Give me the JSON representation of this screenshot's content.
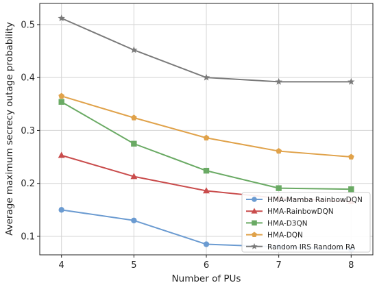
{
  "chart_data": {
    "type": "line",
    "xlabel": "Number of PUs",
    "ylabel": "Average maximum secrecy outage probability",
    "x": [
      4,
      5,
      6,
      7,
      8
    ],
    "xlim": [
      3.7,
      8.3
    ],
    "ylim": [
      0.065,
      0.54
    ],
    "xticks": [
      "4",
      "5",
      "6",
      "7",
      "8"
    ],
    "yticks": [
      0.1,
      0.2,
      0.3,
      0.4,
      0.5
    ],
    "ytick_labels": [
      "0.1",
      "0.2",
      "0.3",
      "0.4",
      "0.5"
    ],
    "grid": true,
    "legend_position": "bottom-right",
    "series": [
      {
        "name": "HMA-Mamba RainbowDQN",
        "color": "#6b9bd1",
        "marker": "circle",
        "values": [
          0.15,
          0.13,
          0.085,
          0.08,
          0.075
        ]
      },
      {
        "name": "HMA-RainbowDQN",
        "color": "#c94c4c",
        "marker": "triangle",
        "values": [
          0.253,
          0.213,
          0.186,
          0.172,
          0.166
        ]
      },
      {
        "name": "HMA-D3QN",
        "color": "#6aaa64",
        "marker": "square",
        "values": [
          0.354,
          0.275,
          0.224,
          0.191,
          0.189
        ]
      },
      {
        "name": "HMA-DQN",
        "color": "#e0a24a",
        "marker": "pentagon",
        "values": [
          0.365,
          0.324,
          0.286,
          0.261,
          0.25
        ]
      },
      {
        "name": "Random IRS Random RA",
        "color": "#7a7a7a",
        "marker": "star",
        "values": [
          0.512,
          0.452,
          0.4,
          0.392,
          0.392
        ]
      }
    ]
  }
}
